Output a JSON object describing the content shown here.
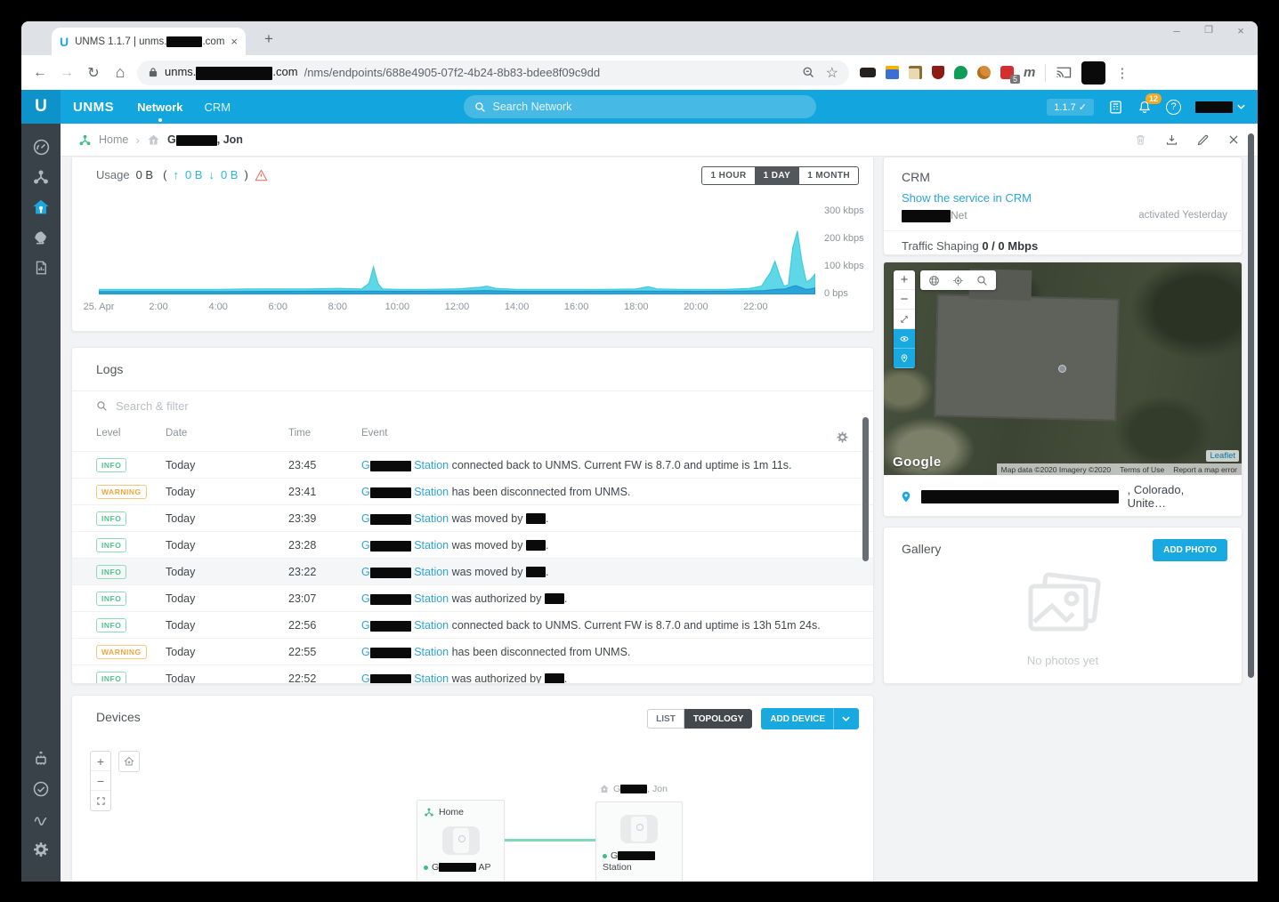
{
  "browser": {
    "tab": {
      "title_prefix": "UNMS 1.1.7 | unms.",
      "title_suffix": ".com",
      "close": "×",
      "new_tab": "+"
    },
    "window_controls": {
      "minimize": "–",
      "maximize": "❐",
      "close": "×"
    },
    "nav": {
      "back": "←",
      "forward": "→",
      "reload": "↻",
      "home": "⌂"
    },
    "url": {
      "host_prefix": "unms.",
      "host_suffix": ".com",
      "path": "/nms/endpoints/688e4905-07f2-4b24-8b83-bdee8f09c9dd"
    },
    "extension_badge": "5",
    "extension_m": "m",
    "menu": "⋮",
    "star": "☆"
  },
  "header": {
    "brand": "UNMS",
    "nav": [
      {
        "label": "Network"
      },
      {
        "label": "CRM"
      }
    ],
    "search_placeholder": "Search Network",
    "version": "1.1.7",
    "version_check": "✓",
    "notifications": "12"
  },
  "breadcrumb": {
    "home": "Home",
    "sep": "›",
    "site_prefix": "G",
    "site_suffix": ", Jon"
  },
  "usage": {
    "label": "Usage",
    "total": "0 B",
    "paren_open": "(",
    "up_arrow": "↑",
    "up": "0 B",
    "down_arrow": "↓",
    "down": "0 B",
    "paren_close": ")",
    "ranges": [
      {
        "label": "1 HOUR"
      },
      {
        "label": "1 DAY"
      },
      {
        "label": "1 MONTH"
      }
    ],
    "active_range": "1 DAY"
  },
  "chart_data": {
    "type": "area",
    "x_range_hours": [
      0,
      24
    ],
    "y_max_kbps": 300,
    "x_ticks": [
      {
        "label": "25. Apr",
        "h": 0
      },
      {
        "label": "2:00",
        "h": 2
      },
      {
        "label": "4:00",
        "h": 4
      },
      {
        "label": "6:00",
        "h": 6
      },
      {
        "label": "8:00",
        "h": 8
      },
      {
        "label": "10:00",
        "h": 10
      },
      {
        "label": "12:00",
        "h": 12
      },
      {
        "label": "14:00",
        "h": 14
      },
      {
        "label": "16:00",
        "h": 16
      },
      {
        "label": "18:00",
        "h": 18
      },
      {
        "label": "20:00",
        "h": 20
      },
      {
        "label": "22:00",
        "h": 22
      }
    ],
    "y_ticks": [
      {
        "label": "300 kbps",
        "v": 300
      },
      {
        "label": "200 kbps",
        "v": 200
      },
      {
        "label": "100 kbps",
        "v": 100
      },
      {
        "label": "0 bps",
        "v": 0
      }
    ],
    "series": [
      {
        "name": "download",
        "color": "#5ed8e7",
        "stroke": "#3fcbdd",
        "points": [
          [
            0,
            18
          ],
          [
            1,
            18
          ],
          [
            2,
            18
          ],
          [
            3,
            18
          ],
          [
            4,
            18
          ],
          [
            5,
            20
          ],
          [
            6,
            20
          ],
          [
            7,
            20
          ],
          [
            8,
            22
          ],
          [
            8.8,
            20
          ],
          [
            9.05,
            40
          ],
          [
            9.2,
            100
          ],
          [
            9.35,
            40
          ],
          [
            9.5,
            20
          ],
          [
            10,
            18
          ],
          [
            11,
            18
          ],
          [
            12,
            20
          ],
          [
            12.8,
            26
          ],
          [
            13,
            30
          ],
          [
            13.3,
            22
          ],
          [
            14,
            18
          ],
          [
            15,
            18
          ],
          [
            16,
            18
          ],
          [
            17,
            18
          ],
          [
            18,
            20
          ],
          [
            18.4,
            28
          ],
          [
            18.7,
            20
          ],
          [
            19.5,
            18
          ],
          [
            20,
            18
          ],
          [
            21,
            18
          ],
          [
            21.8,
            22
          ],
          [
            22.2,
            30
          ],
          [
            22.5,
            80
          ],
          [
            22.65,
            120
          ],
          [
            22.8,
            70
          ],
          [
            22.95,
            30
          ],
          [
            23.1,
            35
          ],
          [
            23.25,
            170
          ],
          [
            23.4,
            230
          ],
          [
            23.55,
            120
          ],
          [
            23.7,
            45
          ],
          [
            23.85,
            55
          ],
          [
            24,
            75
          ]
        ]
      },
      {
        "name": "upload",
        "color": "#2aa4da",
        "stroke": "#1f93c9",
        "points": [
          [
            0,
            10
          ],
          [
            2,
            10
          ],
          [
            4,
            10
          ],
          [
            6,
            11
          ],
          [
            8,
            12
          ],
          [
            9,
            12
          ],
          [
            10,
            11
          ],
          [
            12,
            12
          ],
          [
            13,
            14
          ],
          [
            14,
            11
          ],
          [
            16,
            11
          ],
          [
            18,
            12
          ],
          [
            20,
            11
          ],
          [
            21.5,
            12
          ],
          [
            22.3,
            14
          ],
          [
            22.7,
            18
          ],
          [
            23,
            20
          ],
          [
            23.2,
            28
          ],
          [
            23.35,
            32
          ],
          [
            23.5,
            26
          ],
          [
            23.7,
            18
          ],
          [
            23.85,
            20
          ],
          [
            24,
            24
          ]
        ]
      }
    ]
  },
  "logs": {
    "title": "Logs",
    "search_placeholder": "Search & filter",
    "columns": [
      "Level",
      "Date",
      "Time",
      "Event"
    ],
    "device_link_prefix": "G",
    "device_link_label": "Station",
    "rows": [
      {
        "level": "INFO",
        "date": "Today",
        "time": "23:45",
        "text": "connected back to UNMS. Current FW is 8.7.0 and uptime is 1m 11s.",
        "redacted_user": false,
        "highlight": false
      },
      {
        "level": "WARNING",
        "date": "Today",
        "time": "23:41",
        "text": "has been disconnected from UNMS.",
        "redacted_user": false,
        "highlight": false
      },
      {
        "level": "INFO",
        "date": "Today",
        "time": "23:39",
        "text": "was moved by",
        "redacted_user": true,
        "highlight": false
      },
      {
        "level": "INFO",
        "date": "Today",
        "time": "23:28",
        "text": "was moved by",
        "redacted_user": true,
        "highlight": false
      },
      {
        "level": "INFO",
        "date": "Today",
        "time": "23:22",
        "text": "was moved by",
        "redacted_user": true,
        "highlight": true
      },
      {
        "level": "INFO",
        "date": "Today",
        "time": "23:07",
        "text": "was authorized by",
        "redacted_user": true,
        "highlight": false
      },
      {
        "level": "INFO",
        "date": "Today",
        "time": "22:56",
        "text": "connected back to UNMS. Current FW is 8.7.0 and uptime is 13h 51m 24s.",
        "redacted_user": false,
        "highlight": false
      },
      {
        "level": "WARNING",
        "date": "Today",
        "time": "22:55",
        "text": "has been disconnected from UNMS.",
        "redacted_user": false,
        "highlight": false
      },
      {
        "level": "INFO",
        "date": "Today",
        "time": "22:52",
        "text": "was authorized by",
        "redacted_user": true,
        "highlight": false
      }
    ]
  },
  "crm": {
    "title": "CRM",
    "link": "Show the service in CRM",
    "service_suffix": "Net",
    "activated": "activated Yesterday",
    "traffic_label": "Traffic Shaping",
    "traffic_value": "0 / 0 Mbps"
  },
  "map": {
    "watermark": "Google",
    "attribution": "Map data ©2020 Imagery ©2020",
    "terms": "Terms of Use",
    "report": "Report a map error",
    "leaflet": "Leaflet",
    "address_visible": ", Colorado, Unite…"
  },
  "gallery": {
    "title": "Gallery",
    "add_button": "ADD PHOTO",
    "empty": "No photos yet"
  },
  "devices": {
    "title": "Devices",
    "views": [
      {
        "label": "LIST"
      },
      {
        "label": "TOPOLOGY"
      }
    ],
    "active_view": "TOPOLOGY",
    "add_button": "ADD DEVICE",
    "left_node": {
      "site": "Home",
      "name_prefix": "G",
      "name_suffix": "AP"
    },
    "right_node": {
      "tag_prefix": "G",
      "tag_suffix": ", Jon",
      "name_prefix": "G",
      "name_suffix": "Station"
    }
  },
  "colors": {
    "accent_blue": "#13a6de",
    "link_blue": "#2fa4d9",
    "green": "#3fbd82",
    "warning_orange": "#f0a63f",
    "chart_cyan": "#5ed8e7",
    "chart_blue": "#2aa4da"
  }
}
